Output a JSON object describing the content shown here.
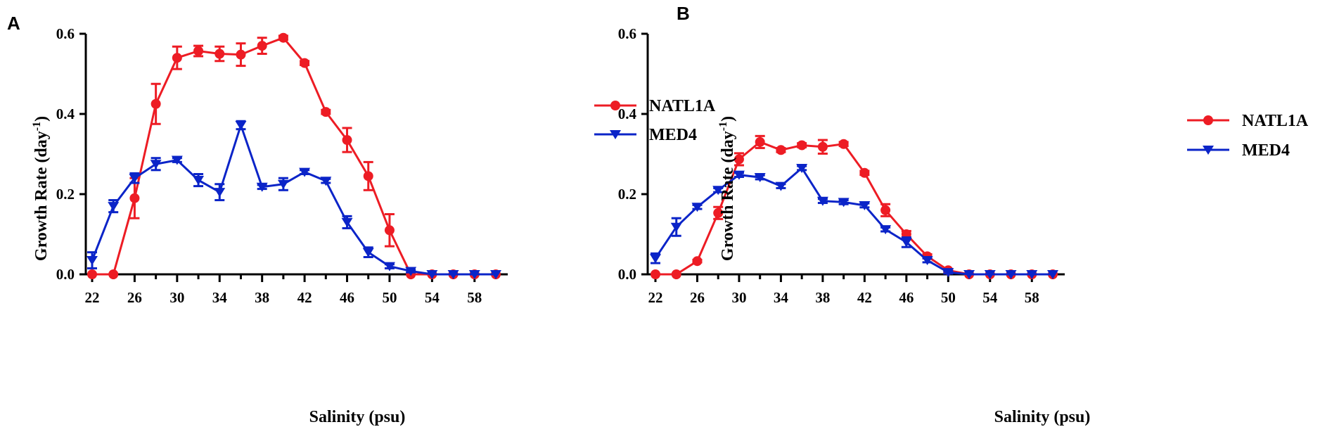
{
  "chart_data": [
    {
      "panel": "A",
      "type": "line",
      "xlabel": "Salinity (psu)",
      "ylabel_main": "Growth Rate (day",
      "ylabel_sup": "-1",
      "ylabel_close": ")",
      "xlim": [
        22,
        60
      ],
      "ylim": [
        0,
        0.6
      ],
      "x_ticks": [
        22,
        26,
        30,
        34,
        38,
        42,
        46,
        50,
        54,
        58
      ],
      "y_ticks": [
        0.0,
        0.2,
        0.4,
        0.6
      ],
      "y_tick_labels": [
        "0.0",
        "0.2",
        "0.4",
        "0.6"
      ],
      "legend_position": "right",
      "series": [
        {
          "name": "NATL1A",
          "color": "#ed1c24",
          "marker": "circle",
          "x": [
            22,
            24,
            26,
            28,
            30,
            32,
            34,
            36,
            38,
            40,
            42,
            44,
            46,
            48,
            50,
            52,
            54,
            56,
            58,
            60
          ],
          "y": [
            0.0,
            0.0,
            0.19,
            0.425,
            0.54,
            0.557,
            0.55,
            0.548,
            0.57,
            0.59,
            0.527,
            0.405,
            0.335,
            0.245,
            0.11,
            0.0,
            0.0,
            0.0,
            0.0,
            0.0
          ],
          "err": [
            0,
            0,
            0.05,
            0.05,
            0.028,
            0.013,
            0.018,
            0.028,
            0.02,
            0.005,
            0.005,
            0.005,
            0.03,
            0.035,
            0.04,
            0,
            0,
            0,
            0,
            0
          ]
        },
        {
          "name": "MED4",
          "color": "#0b24c8",
          "marker": "triangle-down",
          "x": [
            22,
            24,
            26,
            28,
            30,
            32,
            34,
            36,
            38,
            40,
            42,
            44,
            46,
            48,
            50,
            52,
            54,
            56,
            58,
            60
          ],
          "y": [
            0.035,
            0.17,
            0.24,
            0.275,
            0.285,
            0.235,
            0.205,
            0.372,
            0.218,
            0.225,
            0.255,
            0.233,
            0.13,
            0.055,
            0.02,
            0.008,
            0.0,
            0.0,
            0.0,
            0.0
          ],
          "err": [
            0.02,
            0.015,
            0.012,
            0.015,
            0.005,
            0.015,
            0.02,
            0.01,
            0.005,
            0.015,
            0.005,
            0.005,
            0.015,
            0.012,
            0.005,
            0.003,
            0,
            0,
            0,
            0
          ]
        }
      ]
    },
    {
      "panel": "B",
      "type": "line",
      "xlabel": "Salinity (psu)",
      "ylabel_main": "Growth Rate (day",
      "ylabel_sup": "-1",
      "ylabel_close": ")",
      "xlim": [
        22,
        60
      ],
      "ylim": [
        0,
        0.6
      ],
      "x_ticks": [
        22,
        26,
        30,
        34,
        38,
        42,
        46,
        50,
        54,
        58
      ],
      "y_ticks": [
        0.0,
        0.2,
        0.4,
        0.6
      ],
      "y_tick_labels": [
        "0.0",
        "0.2",
        "0.4",
        "0.6"
      ],
      "legend_position": "right",
      "series": [
        {
          "name": "NATL1A",
          "color": "#ed1c24",
          "marker": "circle",
          "x": [
            22,
            24,
            26,
            28,
            30,
            32,
            34,
            36,
            38,
            40,
            42,
            44,
            46,
            48,
            50,
            52,
            54,
            56,
            58,
            60
          ],
          "y": [
            0.0,
            0.0,
            0.033,
            0.153,
            0.287,
            0.33,
            0.31,
            0.322,
            0.318,
            0.325,
            0.253,
            0.16,
            0.1,
            0.045,
            0.01,
            0.0,
            0.0,
            0.0,
            0.0,
            0.0
          ],
          "err": [
            0,
            0,
            0.003,
            0.015,
            0.015,
            0.015,
            0.005,
            0.005,
            0.017,
            0.005,
            0.005,
            0.015,
            0.008,
            0.005,
            0.003,
            0,
            0,
            0,
            0,
            0
          ]
        },
        {
          "name": "MED4",
          "color": "#0b24c8",
          "marker": "triangle-down",
          "x": [
            22,
            24,
            26,
            28,
            30,
            32,
            34,
            36,
            38,
            40,
            42,
            44,
            46,
            48,
            50,
            52,
            54,
            56,
            58,
            60
          ],
          "y": [
            0.04,
            0.118,
            0.168,
            0.21,
            0.248,
            0.242,
            0.22,
            0.265,
            0.183,
            0.18,
            0.172,
            0.112,
            0.08,
            0.035,
            0.005,
            0.0,
            0.0,
            0.0,
            0.0,
            0.0
          ],
          "err": [
            0.012,
            0.022,
            0.005,
            0.005,
            0.005,
            0.005,
            0.005,
            0.005,
            0.005,
            0.005,
            0.005,
            0.005,
            0.012,
            0.005,
            0.003,
            0,
            0,
            0,
            0,
            0
          ]
        }
      ]
    }
  ]
}
